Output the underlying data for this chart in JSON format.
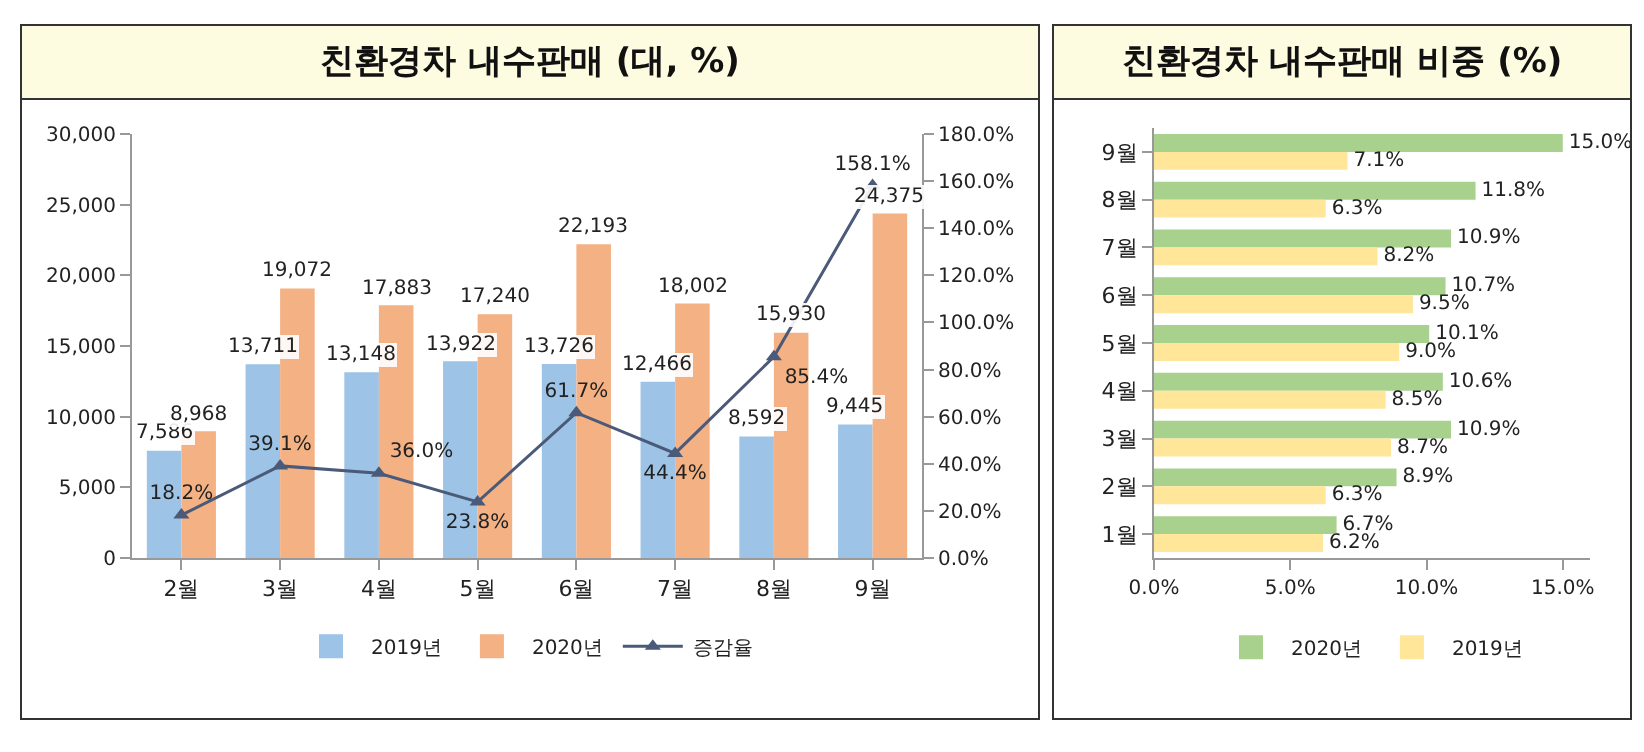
{
  "chart_data": [
    {
      "type": "bar",
      "title": "친환경차 내수판매 (대, %)",
      "categories": [
        "2월",
        "3월",
        "4월",
        "5월",
        "6월",
        "7월",
        "8월",
        "9월"
      ],
      "series": [
        {
          "name": "2019년",
          "color": "#9dc3e6",
          "values": [
            7586,
            13711,
            13148,
            13922,
            13726,
            12466,
            8592,
            9445
          ],
          "value_labels": [
            "7,586",
            "13,711",
            "13,148",
            "13,922",
            "13,726",
            "12,466",
            "8,592",
            "9,445"
          ]
        },
        {
          "name": "2020년",
          "color": "#f4b183",
          "values": [
            8968,
            19072,
            17883,
            17240,
            22193,
            18002,
            15930,
            24375
          ],
          "value_labels": [
            "8,968",
            "19,072",
            "17,883",
            "17,240",
            "22,193",
            "18,002",
            "15,930",
            "24,375"
          ]
        },
        {
          "name": "증감율",
          "type": "line",
          "axis": "y2",
          "color": "#4a5a78",
          "marker": "triangle",
          "values": [
            18.2,
            39.1,
            36.0,
            23.8,
            61.7,
            44.4,
            85.4,
            158.1
          ],
          "value_labels": [
            "18.2%",
            "39.1%",
            "36.0%",
            "23.8%",
            "61.7%",
            "44.4%",
            "85.4%",
            "158.1%"
          ]
        }
      ],
      "ylim": [
        0,
        30000
      ],
      "yticks": [
        0,
        {
          "value": 5000,
          "label": "5,000"
        },
        {
          "value": 10000,
          "label": "10,000"
        },
        {
          "value": 15000,
          "label": "15,000"
        },
        {
          "value": 20000,
          "label": "20,000"
        },
        {
          "value": 25000,
          "label": "25,000"
        },
        {
          "value": 30000,
          "label": "30,000"
        }
      ],
      "y2lim": [
        0,
        180
      ],
      "y2ticks": [
        {
          "value": 0,
          "label": "0.0%"
        },
        {
          "value": 20,
          "label": "20.0%"
        },
        {
          "value": 40,
          "label": "40.0%"
        },
        {
          "value": 60,
          "label": "60.0%"
        },
        {
          "value": 80,
          "label": "80.0%"
        },
        {
          "value": 100,
          "label": "100.0%"
        },
        {
          "value": 120,
          "label": "120.0%"
        },
        {
          "value": 140,
          "label": "140.0%"
        },
        {
          "value": 160,
          "label": "160.0%"
        },
        {
          "value": 180,
          "label": "180.0%"
        }
      ],
      "grid": false,
      "legend": "bottom"
    },
    {
      "type": "bar",
      "orientation": "horizontal",
      "title": "친환경차 내수판매 비중 (%)",
      "categories": [
        "9월",
        "8월",
        "7월",
        "6월",
        "5월",
        "4월",
        "3월",
        "2월",
        "1월"
      ],
      "series": [
        {
          "name": "2020년",
          "color": "#a9d18e",
          "values": [
            15.0,
            11.8,
            10.9,
            10.7,
            10.1,
            10.6,
            10.9,
            8.9,
            6.7
          ],
          "value_labels": [
            "15.0%",
            "11.8%",
            "10.9%",
            "10.7%",
            "10.1%",
            "10.6%",
            "10.9%",
            "8.9%",
            "6.7%"
          ]
        },
        {
          "name": "2019년",
          "color": "#ffe699",
          "values": [
            7.1,
            6.3,
            8.2,
            9.5,
            9.0,
            8.5,
            8.7,
            6.3,
            6.2
          ],
          "value_labels": [
            "7.1%",
            "6.3%",
            "8.2%",
            "9.5%",
            "9.0%",
            "8.5%",
            "8.7%",
            "6.3%",
            "6.2%"
          ]
        }
      ],
      "xlim": [
        0,
        16
      ],
      "xticks": [
        {
          "value": 0,
          "label": "0.0%"
        },
        {
          "value": 5,
          "label": "5.0%"
        },
        {
          "value": 10,
          "label": "10.0%"
        },
        {
          "value": 15,
          "label": "15.0%"
        }
      ],
      "grid": false,
      "legend": "bottom"
    }
  ]
}
